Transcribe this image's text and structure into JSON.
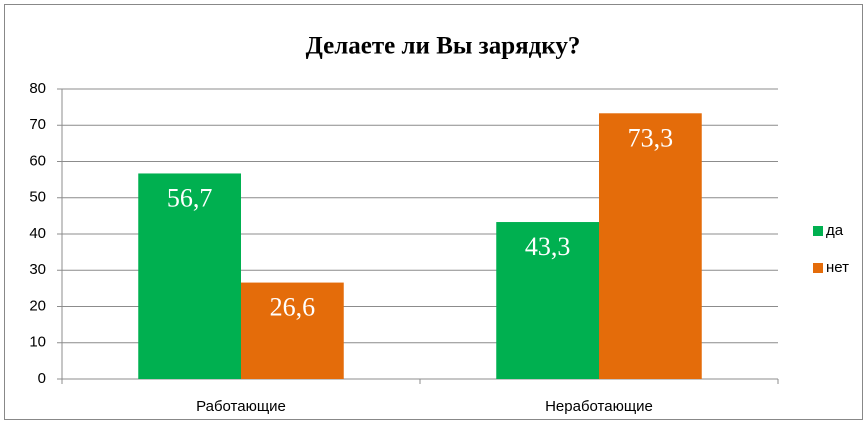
{
  "chart_data": {
    "type": "bar",
    "title": "Делаете ли Вы зарядку?",
    "categories": [
      "Работающие",
      "Неработающие"
    ],
    "series": [
      {
        "name": "да",
        "color": "#00b050",
        "values": [
          56.7,
          43.3
        ],
        "value_labels": [
          "56,7",
          "43,3"
        ]
      },
      {
        "name": "нет",
        "color": "#e46c0a",
        "values": [
          26.6,
          73.3
        ],
        "value_labels": [
          "26,6",
          "73,3"
        ]
      }
    ],
    "ylim": [
      0,
      80
    ],
    "yticks": [
      0,
      10,
      20,
      30,
      40,
      50,
      60,
      70,
      80
    ],
    "grid": true,
    "legend": "right"
  }
}
